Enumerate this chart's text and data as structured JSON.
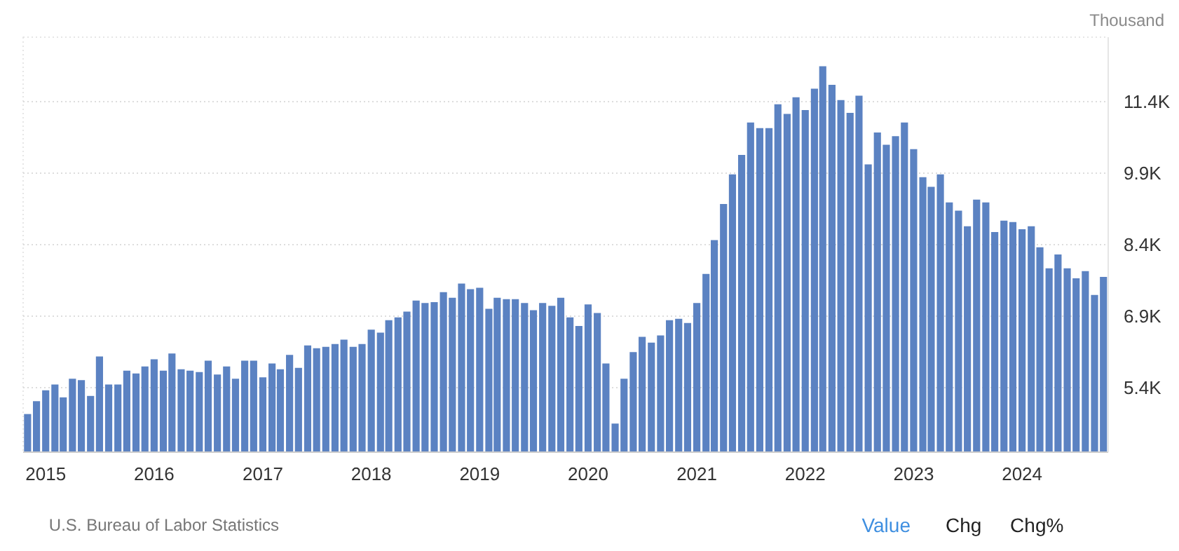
{
  "chart_data": {
    "type": "bar",
    "ylabel": "Thousand",
    "x": [
      "2014-11",
      "2014-12",
      "2015-01",
      "2015-02",
      "2015-03",
      "2015-04",
      "2015-05",
      "2015-06",
      "2015-07",
      "2015-08",
      "2015-09",
      "2015-10",
      "2015-11",
      "2015-12",
      "2016-01",
      "2016-02",
      "2016-03",
      "2016-04",
      "2016-05",
      "2016-06",
      "2016-07",
      "2016-08",
      "2016-09",
      "2016-10",
      "2016-11",
      "2016-12",
      "2017-01",
      "2017-02",
      "2017-03",
      "2017-04",
      "2017-05",
      "2017-06",
      "2017-07",
      "2017-08",
      "2017-09",
      "2017-10",
      "2017-11",
      "2017-12",
      "2018-01",
      "2018-02",
      "2018-03",
      "2018-04",
      "2018-05",
      "2018-06",
      "2018-07",
      "2018-08",
      "2018-09",
      "2018-10",
      "2018-11",
      "2018-12",
      "2019-01",
      "2019-02",
      "2019-03",
      "2019-04",
      "2019-05",
      "2019-06",
      "2019-07",
      "2019-08",
      "2019-09",
      "2019-10",
      "2019-11",
      "2019-12",
      "2020-01",
      "2020-02",
      "2020-03",
      "2020-04",
      "2020-05",
      "2020-06",
      "2020-07",
      "2020-08",
      "2020-09",
      "2020-10",
      "2020-11",
      "2020-12",
      "2021-01",
      "2021-02",
      "2021-03",
      "2021-04",
      "2021-05",
      "2021-06",
      "2021-07",
      "2021-08",
      "2021-09",
      "2021-10",
      "2021-11",
      "2021-12",
      "2022-01",
      "2022-02",
      "2022-03",
      "2022-04",
      "2022-05",
      "2022-06",
      "2022-07",
      "2022-08",
      "2022-09",
      "2022-10",
      "2022-11",
      "2022-12",
      "2023-01",
      "2023-02",
      "2023-03",
      "2023-04",
      "2023-05",
      "2023-06",
      "2023-07",
      "2023-08",
      "2023-09",
      "2023-10",
      "2023-11",
      "2023-12",
      "2024-01",
      "2024-02",
      "2024-03",
      "2024-04",
      "2024-05",
      "2024-06",
      "2024-07",
      "2024-08",
      "2024-09",
      "2024-10"
    ],
    "values": [
      4850,
      5120,
      5350,
      5470,
      5200,
      5590,
      5560,
      5230,
      6060,
      5470,
      5470,
      5760,
      5700,
      5850,
      6000,
      5760,
      6120,
      5790,
      5760,
      5730,
      5970,
      5680,
      5850,
      5590,
      5970,
      5970,
      5620,
      5910,
      5790,
      6090,
      5820,
      6290,
      6230,
      6260,
      6320,
      6410,
      6260,
      6320,
      6620,
      6560,
      6820,
      6880,
      7000,
      7230,
      7180,
      7200,
      7410,
      7290,
      7590,
      7470,
      7500,
      7060,
      7290,
      7260,
      7260,
      7180,
      7030,
      7180,
      7120,
      7290,
      6880,
      6700,
      7150,
      6970,
      5910,
      4650,
      5590,
      6150,
      6470,
      6350,
      6500,
      6820,
      6850,
      6760,
      7180,
      7790,
      8500,
      9260,
      9880,
      10290,
      10970,
      10850,
      10850,
      11350,
      11150,
      11500,
      11230,
      11680,
      12150,
      11760,
      11440,
      11170,
      11530,
      10090,
      10760,
      10500,
      10680,
      10970,
      10410,
      9820,
      9620,
      9880,
      9290,
      9120,
      8790,
      9350,
      9290,
      8670,
      8910,
      8880,
      8730,
      8790,
      8350,
      7910,
      8200,
      7910,
      7700,
      7850,
      7350,
      7730
    ],
    "color": "#5b82c2",
    "xlim": [
      "2014-10-17",
      "2024-10-17"
    ],
    "xticks": [
      "2015",
      "2016",
      "2017",
      "2018",
      "2019",
      "2020",
      "2021",
      "2022",
      "2023",
      "2024"
    ],
    "ylim": [
      4050,
      12760
    ],
    "yticks": [
      {
        "value": 5400,
        "label": "5.4K"
      },
      {
        "value": 6900,
        "label": "6.9K"
      },
      {
        "value": 8400,
        "label": "8.4K"
      },
      {
        "value": 9900,
        "label": "9.9K"
      },
      {
        "value": 11400,
        "label": "11.4K"
      }
    ],
    "grid": true,
    "annotations": [
      "U.S. Bureau of Labor Statistics",
      "Value",
      "Chg",
      "Chg%"
    ]
  }
}
